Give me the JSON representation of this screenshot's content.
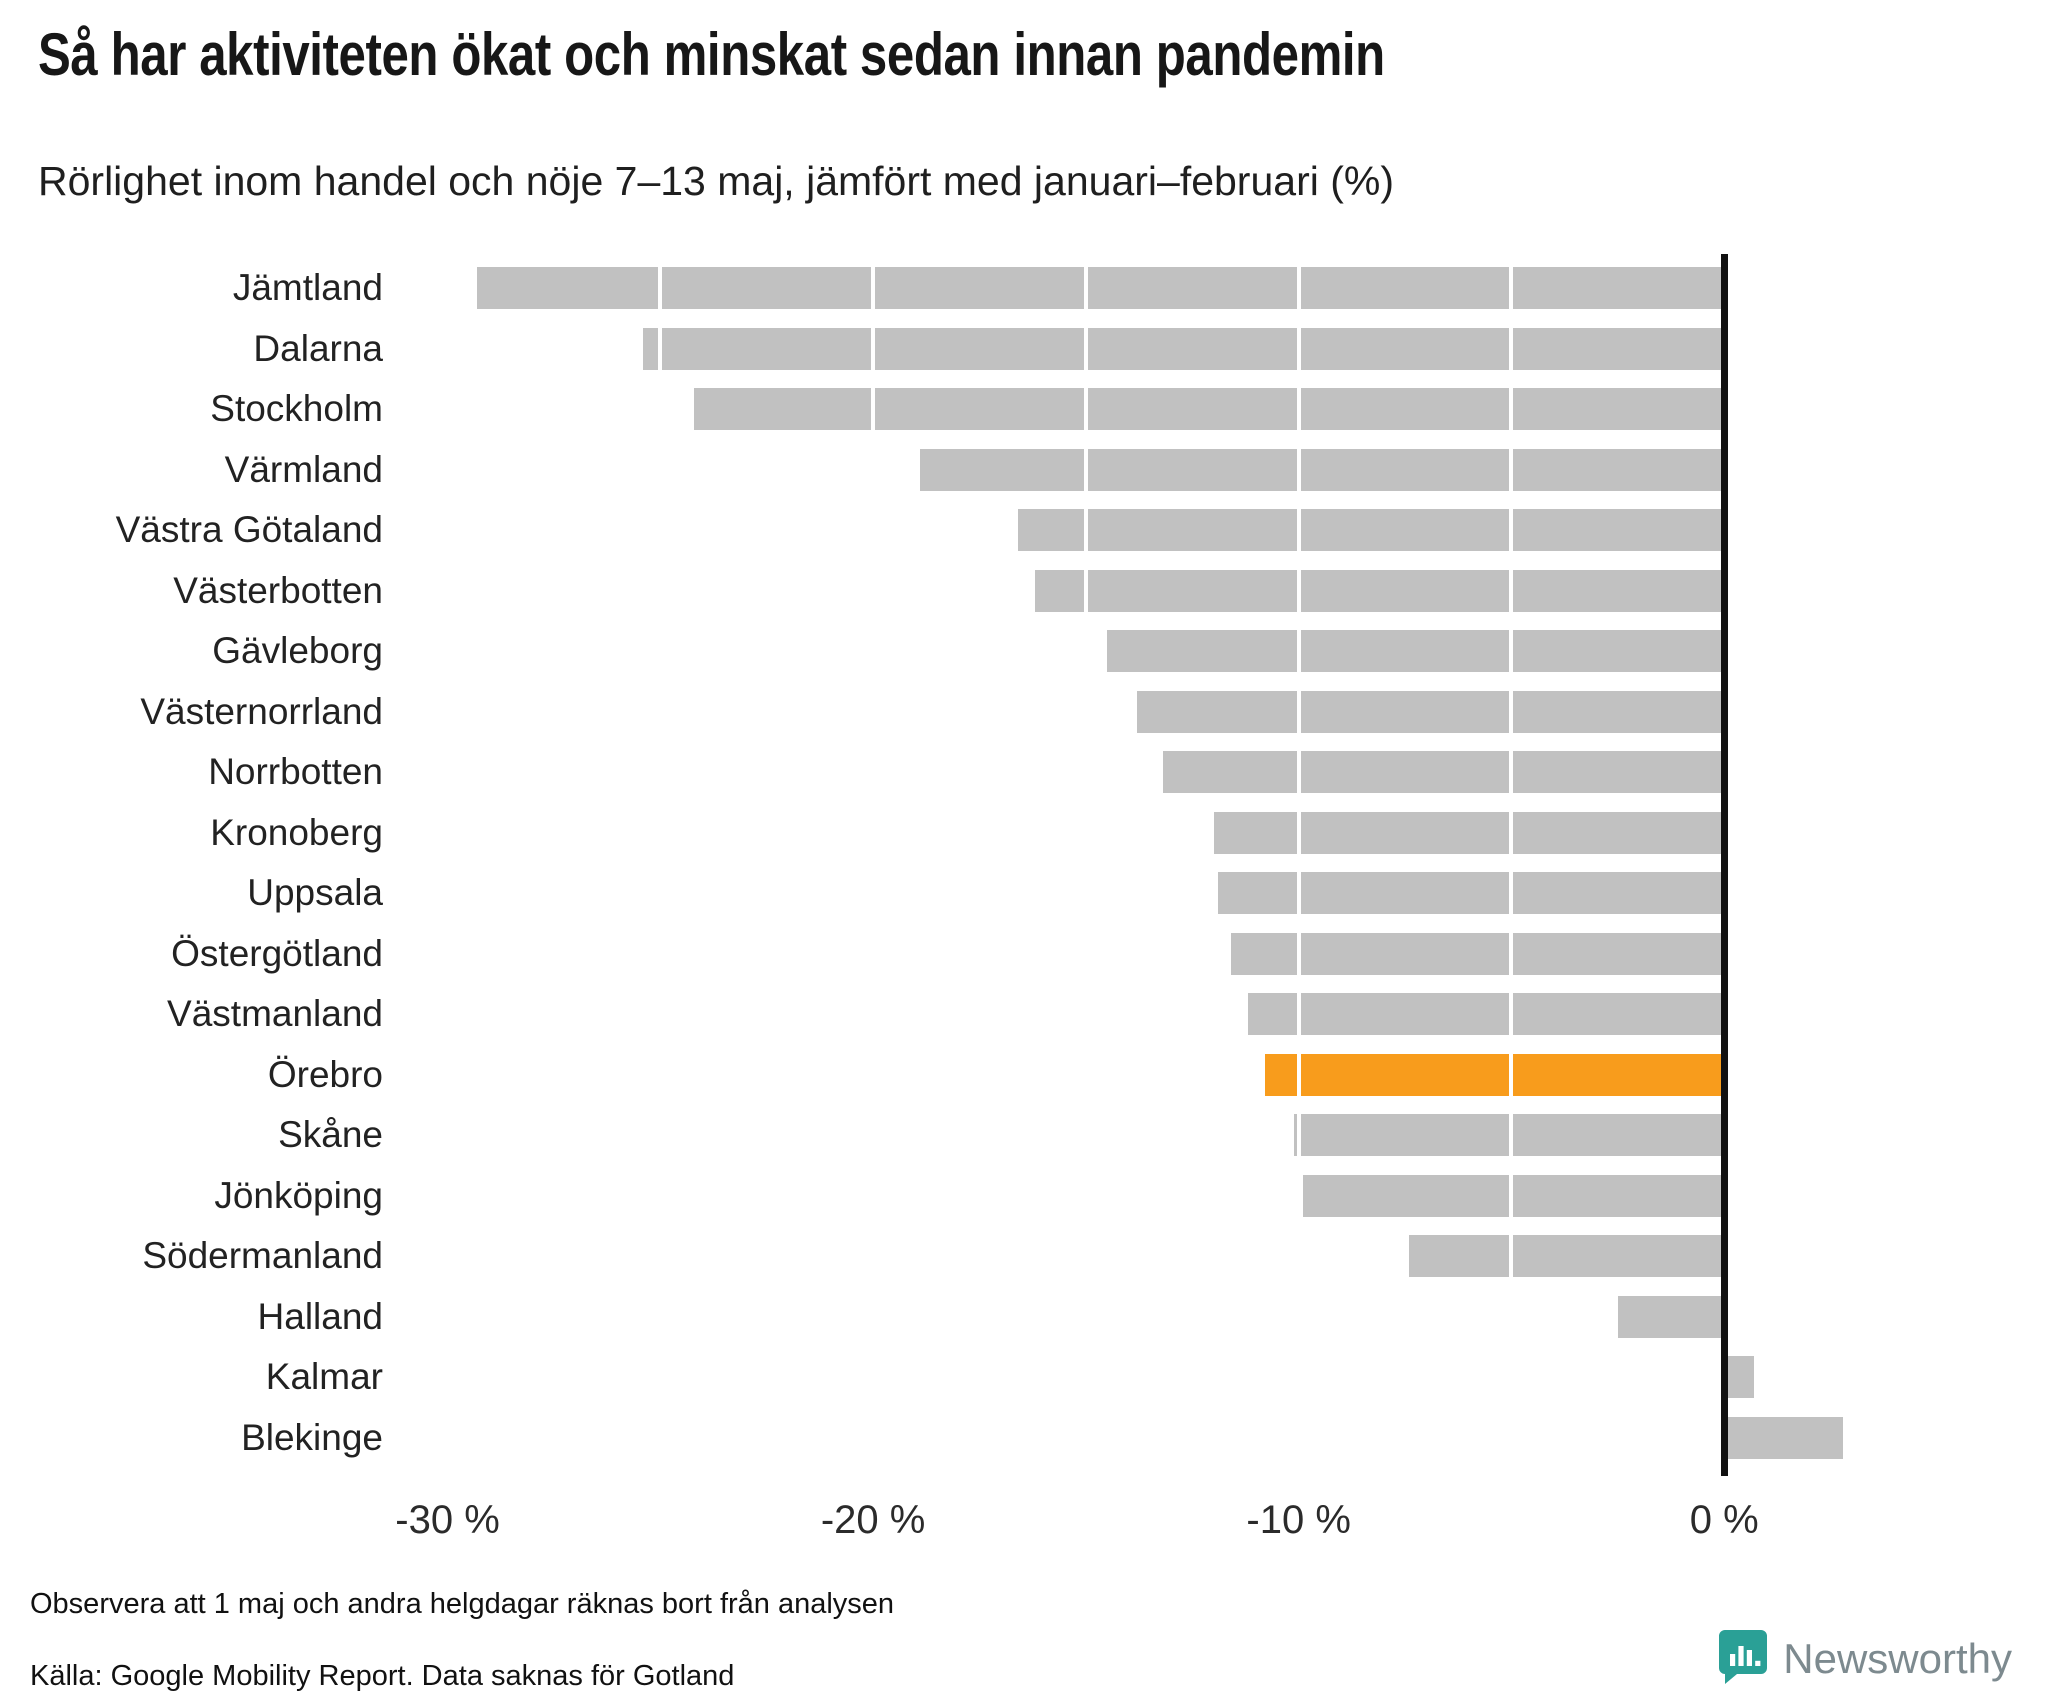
{
  "title": "Så har aktiviteten ökat och minskat sedan innan pandemin",
  "subtitle": "Rörlighet inom handel och nöje 7–13 maj, jämfört med januari–februari (%)",
  "notes": {
    "note1": "Observera att 1 maj och andra helgdagar räknas bort från analysen",
    "source": "Källa: Google Mobility Report. Data saknas för Gotland"
  },
  "branding": {
    "name": "Newsworthy",
    "logo_icon": "newsworthy-bar-chart-icon",
    "logo_color": "#2aa096"
  },
  "colors": {
    "bar": "#c1c1c1",
    "highlight": "#f89c1c",
    "axis": "#111111",
    "gridline": "#ffffff",
    "text": "#1a1a1a"
  },
  "chart_data": {
    "type": "bar",
    "orientation": "horizontal",
    "title": "Så har aktiviteten ökat och minskat sedan innan pandemin",
    "subtitle": "Rörlighet inom handel och nöje 7–13 maj, jämfört med januari–februari (%)",
    "xlabel": "",
    "ylabel": "",
    "unit": "%",
    "categories": [
      "Jämtland",
      "Dalarna",
      "Stockholm",
      "Värmland",
      "Västra Götaland",
      "Västerbotten",
      "Gävleborg",
      "Västernorrland",
      "Norrbotten",
      "Kronoberg",
      "Uppsala",
      "Östergötland",
      "Västmanland",
      "Örebro",
      "Skåne",
      "Jönköping",
      "Södermanland",
      "Halland",
      "Kalmar",
      "Blekinge"
    ],
    "values": [
      -29.3,
      -25.4,
      -24.2,
      -18.9,
      -16.6,
      -16.2,
      -14.5,
      -13.8,
      -13.2,
      -12.0,
      -11.9,
      -11.6,
      -11.2,
      -10.8,
      -10.1,
      -9.9,
      -7.4,
      -2.5,
      0.7,
      2.8
    ],
    "highlight_category": "Örebro",
    "xlim": [
      -31,
      4.6
    ],
    "x_ticks": [
      {
        "value": -30,
        "label": "-30 %"
      },
      {
        "value": -20,
        "label": "-20 %"
      },
      {
        "value": -10,
        "label": "-10 %"
      },
      {
        "value": 0,
        "label": "0 %"
      }
    ],
    "gridlines": [
      -30,
      -25,
      -20,
      -15,
      -10,
      -5
    ],
    "grid": "white lines over bars every 5 units",
    "legend": "none"
  }
}
